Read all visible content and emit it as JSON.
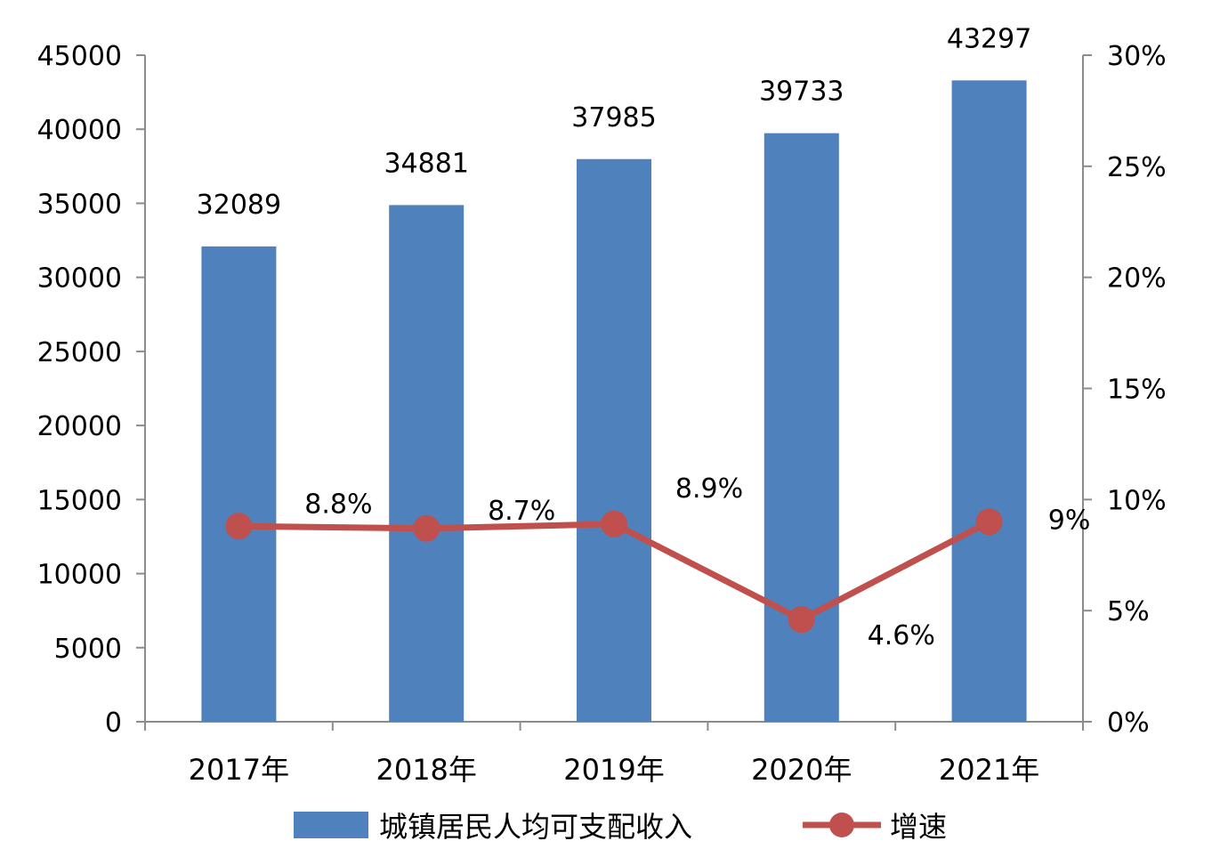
{
  "chart_data": {
    "type": "bar",
    "categories": [
      "2017年",
      "2018年",
      "2019年",
      "2020年",
      "2021年"
    ],
    "series": [
      {
        "name": "城镇居民人均可支配收入",
        "kind": "bar",
        "axis": "left",
        "color": "#4F81BD",
        "values": [
          32089,
          34881,
          37985,
          39733,
          43297
        ],
        "labels": [
          "32089",
          "34881",
          "37985",
          "39733",
          "43297"
        ]
      },
      {
        "name": "增速",
        "kind": "line",
        "axis": "right",
        "color": "#C0504D",
        "values": [
          8.8,
          8.7,
          8.9,
          4.6,
          9
        ],
        "labels": [
          "8.8%",
          "8.7%",
          "8.9%",
          "4.6%",
          "9%"
        ]
      }
    ],
    "y_left": {
      "ylim": [
        0,
        45000
      ],
      "ticks": [
        "0",
        "5000",
        "10000",
        "15000",
        "20000",
        "25000",
        "30000",
        "35000",
        "40000",
        "45000"
      ]
    },
    "y_right": {
      "ylim": [
        0,
        30
      ],
      "ticks": [
        "0%",
        "5%",
        "10%",
        "15%",
        "20%",
        "25%",
        "30%"
      ]
    },
    "grid": false,
    "legend": "bottom"
  }
}
